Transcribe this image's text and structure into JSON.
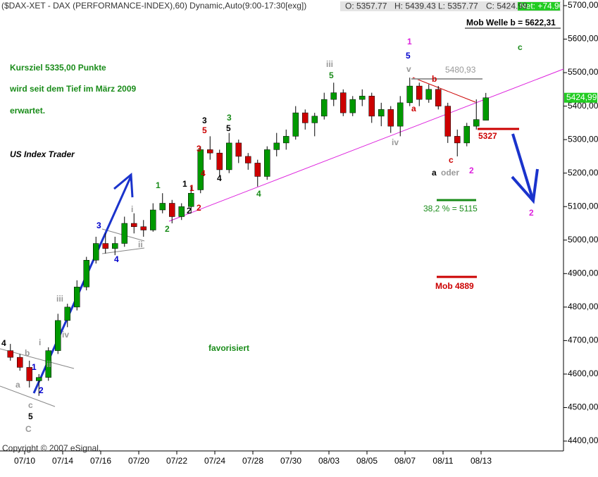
{
  "chart_data": {
    "type": "candlestick",
    "title": "($DAX-XET - DAX (PERFORMANCE-INDEX),60) Dynamic,Auto(9:00-17:30[exg])",
    "quote": [
      "O: 5357.77",
      "H: 5439.43",
      "L: 5357.77",
      "C: 5424.99"
    ],
    "net": "Net: +74.90",
    "copyright": "Copyright © 2007 eSignal.",
    "last_value": 5424.99,
    "last_label": "5424,99",
    "up_color": "#009900",
    "down_color": "#cc0000",
    "categories": [
      null,
      null,
      "07/10",
      null,
      null,
      null,
      "07/14",
      null,
      null,
      null,
      "07/16",
      null,
      null,
      null,
      "07/20",
      null,
      null,
      null,
      "07/22",
      null,
      null,
      null,
      "07/24",
      null,
      null,
      null,
      "07/28",
      null,
      null,
      null,
      "07/30",
      null,
      null,
      null,
      "08/03",
      null,
      null,
      null,
      "08/05",
      null,
      null,
      null,
      "08/07",
      null,
      null,
      null,
      "08/11",
      null,
      null,
      null,
      "08/13"
    ],
    "open": [
      4670,
      4650,
      4620,
      4580,
      4590,
      4670,
      4760,
      4800,
      4860,
      4940,
      4990,
      4975,
      4990,
      5050,
      5040,
      5030,
      5090,
      5110,
      5070,
      5100,
      5150,
      5270,
      5260,
      5210,
      5290,
      5250,
      5230,
      5190,
      5270,
      5290,
      5310,
      5380,
      5350,
      5370,
      5420,
      5440,
      5380,
      5420,
      5430,
      5370,
      5390,
      5340,
      5410,
      5460,
      5420,
      5450,
      5400,
      5310,
      5290,
      5340,
      5357.77
    ],
    "high": [
      4690,
      4660,
      4640,
      4600,
      4680,
      4780,
      4810,
      4880,
      4950,
      5010,
      5020,
      5010,
      5070,
      5080,
      5060,
      5110,
      5140,
      5120,
      5110,
      5160,
      5280,
      5310,
      5270,
      5320,
      5300,
      5260,
      5240,
      5280,
      5320,
      5330,
      5400,
      5390,
      5380,
      5440,
      5470,
      5450,
      5430,
      5450,
      5440,
      5410,
      5400,
      5430,
      5485,
      5470,
      5465,
      5460,
      5410,
      5330,
      5350,
      5420,
      5439.43
    ],
    "low": [
      4640,
      4610,
      4560,
      4535,
      4580,
      4660,
      4740,
      4790,
      4850,
      4930,
      4960,
      4955,
      4980,
      5020,
      5010,
      5025,
      5080,
      5050,
      5060,
      5080,
      5140,
      5240,
      5190,
      5200,
      5230,
      5210,
      5160,
      5180,
      5250,
      5270,
      5300,
      5330,
      5310,
      5360,
      5400,
      5370,
      5370,
      5400,
      5350,
      5340,
      5320,
      5310,
      5400,
      5400,
      5410,
      5390,
      5290,
      5250,
      5280,
      5330,
      5357.77
    ],
    "close": [
      4650,
      4620,
      4580,
      4590,
      4670,
      4760,
      4800,
      4860,
      4940,
      4990,
      4975,
      4990,
      5050,
      5040,
      5030,
      5090,
      5110,
      5070,
      5100,
      5140,
      5270,
      5260,
      5210,
      5290,
      5250,
      5230,
      5190,
      5270,
      5290,
      5310,
      5380,
      5350,
      5370,
      5420,
      5440,
      5380,
      5420,
      5430,
      5370,
      5390,
      5340,
      5410,
      5460,
      5420,
      5450,
      5400,
      5310,
      5290,
      5340,
      5360,
      5424.99
    ],
    "ylim": [
      4400,
      5700
    ],
    "yticks": [
      {
        "value": 5700,
        "label": "5700,00"
      },
      {
        "value": 5600,
        "label": "5600,00"
      },
      {
        "value": 5500,
        "label": "5500,00"
      },
      {
        "value": 5400,
        "label": "5400,00"
      },
      {
        "value": 5300,
        "label": "5300,00"
      },
      {
        "value": 5200,
        "label": "5200,00"
      },
      {
        "value": 5100,
        "label": "5100,00"
      },
      {
        "value": 5000,
        "label": "5000,00"
      },
      {
        "value": 4900,
        "label": "4900,00"
      },
      {
        "value": 4800,
        "label": "4800,00"
      },
      {
        "value": 4700,
        "label": "4700,00"
      },
      {
        "value": 4600,
        "label": "4600,00"
      },
      {
        "value": 4500,
        "label": "4500,00"
      },
      {
        "value": 4400,
        "label": "4400,00"
      }
    ],
    "annotations": [
      {
        "text": "Kursziel 5335,00 Punkte",
        "color": "#1a8c1a"
      },
      {
        "text": "wird seit dem Tief im März 2009",
        "color": "#1a8c1a"
      },
      {
        "text": "erwartet.",
        "color": "#1a8c1a"
      },
      {
        "text": "US Index Trader",
        "color": "#000000"
      },
      {
        "text": "favorisiert",
        "color": "#1a8c1a"
      },
      {
        "text": "Mob Welle b = 5622,31",
        "color": "#000000"
      },
      {
        "text": "c",
        "color": "#1a8c1a"
      },
      {
        "text": "5480,93",
        "color": "#999999"
      },
      {
        "text": "5327",
        "color": "#cc0000"
      },
      {
        "text": "38,2 % = 5115",
        "color": "#1a8c1a"
      },
      {
        "text": "Mob 4889",
        "color": "#cc0000"
      },
      {
        "text": "4",
        "color": "#000000"
      },
      {
        "text": "b",
        "color": "#999999"
      },
      {
        "text": "a",
        "color": "#999999"
      },
      {
        "text": "c",
        "color": "#999999"
      },
      {
        "text": "5",
        "color": "#000000"
      },
      {
        "text": "C",
        "color": "#999999"
      },
      {
        "text": "1",
        "color": "#0000cc"
      },
      {
        "text": "2",
        "color": "#0000cc"
      },
      {
        "text": "i",
        "color": "#999999"
      },
      {
        "text": "ii",
        "color": "#999999"
      },
      {
        "text": "iii",
        "color": "#999999"
      },
      {
        "text": "iv",
        "color": "#999999"
      },
      {
        "text": "3",
        "color": "#0000cc"
      },
      {
        "text": "4",
        "color": "#0000cc"
      },
      {
        "text": "i",
        "color": "#999999"
      },
      {
        "text": "ii",
        "color": "#999999"
      },
      {
        "text": "1",
        "color": "#1a8c1a"
      },
      {
        "text": "2",
        "color": "#1a8c1a"
      },
      {
        "text": "1",
        "color": "#000000"
      },
      {
        "text": "1",
        "color": "#cc0000"
      },
      {
        "text": "2",
        "color": "#000000"
      },
      {
        "text": "2",
        "color": "#cc0000"
      },
      {
        "text": "3",
        "color": "#000000"
      },
      {
        "text": "5",
        "color": "#cc0000"
      },
      {
        "text": "3",
        "color": "#cc0000"
      },
      {
        "text": "4",
        "color": "#cc0000"
      },
      {
        "text": "3",
        "color": "#1a8c1a"
      },
      {
        "text": "5",
        "color": "#000000"
      },
      {
        "text": "4",
        "color": "#000000"
      },
      {
        "text": "4",
        "color": "#1a8c1a"
      },
      {
        "text": "iii",
        "color": "#999999"
      },
      {
        "text": "5",
        "color": "#1a8c1a"
      },
      {
        "text": "1",
        "color": "#dd22dd"
      },
      {
        "text": "5",
        "color": "#0000cc"
      },
      {
        "text": "v",
        "color": "#999999"
      },
      {
        "text": "b",
        "color": "#cc0000"
      },
      {
        "text": "a",
        "color": "#cc0000"
      },
      {
        "text": "iv",
        "color": "#999999"
      },
      {
        "text": "c",
        "color": "#cc0000"
      },
      {
        "text": "a",
        "color": "#000000"
      },
      {
        "text": "oder",
        "color": "#999999"
      },
      {
        "text": "2",
        "color": "#dd22dd"
      },
      {
        "text": "2",
        "color": "#dd22dd"
      }
    ]
  }
}
